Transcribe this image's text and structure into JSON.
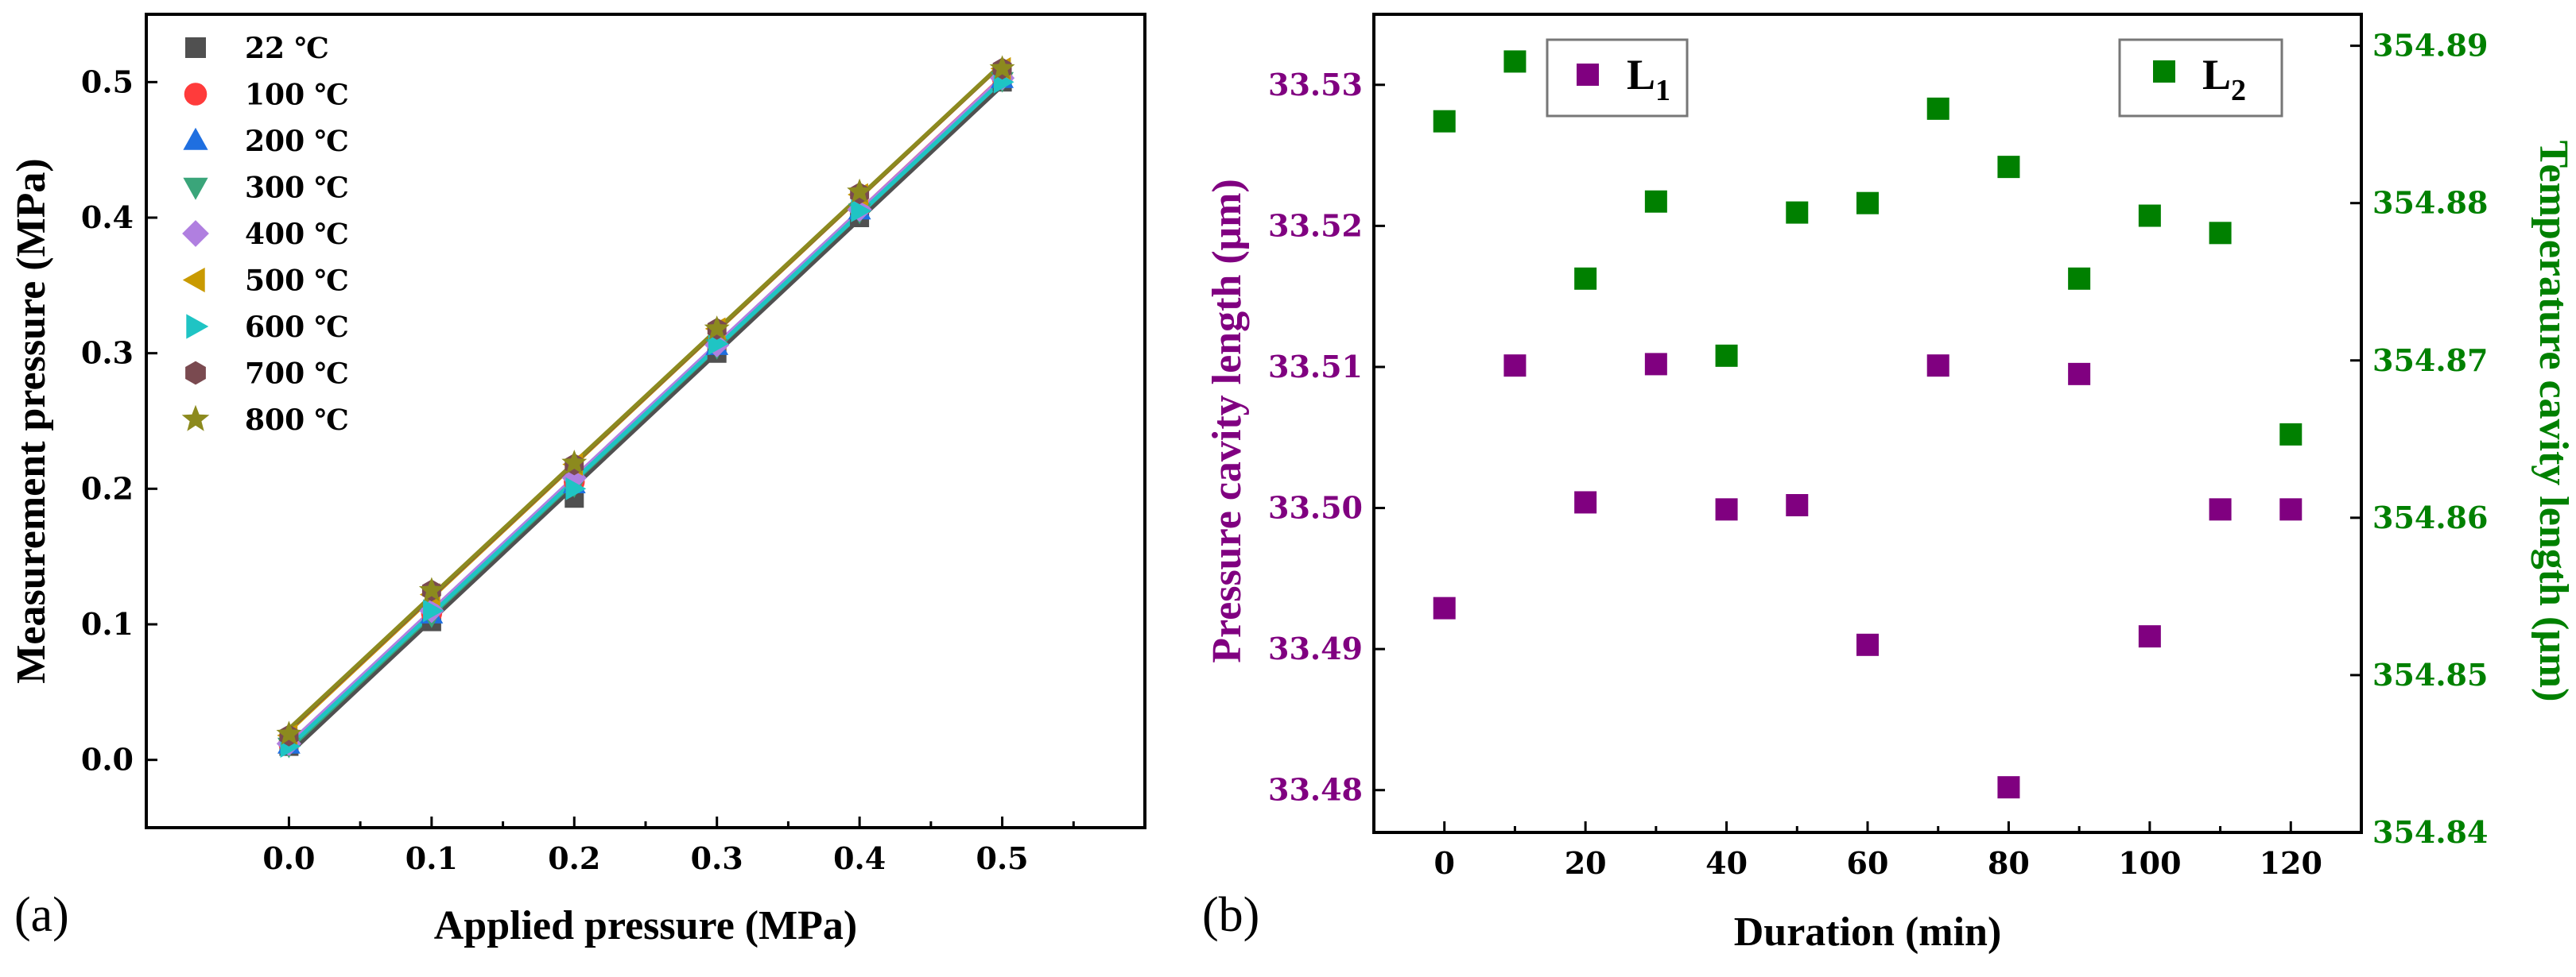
{
  "chart_data": [
    {
      "type": "line",
      "panel_label": "(a)",
      "xlabel": "Applied pressure (MPa)",
      "ylabel": "Measurement pressure (MPa)",
      "xlim": [
        -0.1,
        0.6
      ],
      "ylim": [
        -0.05,
        0.55
      ],
      "xticks": [
        "0.0",
        "0.1",
        "0.2",
        "0.3",
        "0.4",
        "0.5"
      ],
      "yticks": [
        "0.0",
        "0.1",
        "0.2",
        "0.3",
        "0.4",
        "0.5"
      ],
      "legend_position": "top-left",
      "x": [
        0.0,
        0.1,
        0.2,
        0.3,
        0.4,
        0.5
      ],
      "series": [
        {
          "name": "22 ℃",
          "marker": "square",
          "color": "#505050",
          "values": [
            0.01,
            0.102,
            0.193,
            0.3,
            0.4,
            0.5
          ]
        },
        {
          "name": "100 ℃",
          "marker": "circle",
          "color": "#ff3b3b",
          "values": [
            0.012,
            0.108,
            0.205,
            0.307,
            0.407,
            0.503
          ]
        },
        {
          "name": "200 ℃",
          "marker": "triangle-up",
          "color": "#1f6fe0",
          "values": [
            0.011,
            0.107,
            0.203,
            0.305,
            0.405,
            0.502
          ]
        },
        {
          "name": "300 ℃",
          "marker": "triangle-down",
          "color": "#3aa57a",
          "values": [
            0.01,
            0.106,
            0.202,
            0.304,
            0.404,
            0.501
          ]
        },
        {
          "name": "400 ℃",
          "marker": "diamond",
          "color": "#b07fe0",
          "values": [
            0.012,
            0.11,
            0.208,
            0.306,
            0.406,
            0.503
          ]
        },
        {
          "name": "500 ℃",
          "marker": "triangle-left",
          "color": "#c99a00",
          "values": [
            0.018,
            0.122,
            0.218,
            0.318,
            0.417,
            0.51
          ]
        },
        {
          "name": "600 ℃",
          "marker": "triangle-right",
          "color": "#1fc4c4",
          "values": [
            0.01,
            0.11,
            0.2,
            0.307,
            0.405,
            0.5
          ]
        },
        {
          "name": "700 ℃",
          "marker": "hexagon",
          "color": "#7a4a50",
          "values": [
            0.018,
            0.125,
            0.218,
            0.318,
            0.418,
            0.51
          ]
        },
        {
          "name": "800 ℃",
          "marker": "star",
          "color": "#8c8a1e",
          "values": [
            0.019,
            0.125,
            0.219,
            0.318,
            0.419,
            0.51
          ]
        }
      ]
    },
    {
      "type": "scatter",
      "panel_label": "(b)",
      "xlabel": "Duration (min)",
      "ylabel_left": "Pressure cavity length (μm)",
      "ylabel_right": "Temperature cavity length (μm)",
      "xlim": [
        -10,
        130
      ],
      "ylim_left": [
        33.477,
        33.535
      ],
      "ylim_right": [
        354.84,
        354.892
      ],
      "xticks": [
        "0",
        "20",
        "40",
        "60",
        "80",
        "100",
        "120"
      ],
      "yticks_left": [
        "33.48",
        "33.49",
        "33.50",
        "33.51",
        "33.52",
        "33.53"
      ],
      "yticks_right": [
        "354.84",
        "354.85",
        "354.86",
        "354.87",
        "354.88",
        "354.89"
      ],
      "series": [
        {
          "name": "L",
          "subscript": "1",
          "axis": "left",
          "color": "#800080",
          "x": [
            0,
            10,
            20,
            30,
            40,
            50,
            60,
            70,
            80,
            90,
            100,
            110,
            120
          ],
          "values": [
            33.4929,
            33.5101,
            33.5004,
            33.5102,
            33.4999,
            33.5002,
            33.4903,
            33.5101,
            33.4802,
            33.5095,
            33.4909,
            33.4999,
            33.4999
          ]
        },
        {
          "name": "L",
          "subscript": "2",
          "axis": "right",
          "color": "#008000",
          "x": [
            0,
            10,
            20,
            30,
            40,
            50,
            60,
            70,
            80,
            90,
            100,
            110,
            120
          ],
          "values": [
            354.8852,
            354.889,
            354.8752,
            354.8801,
            354.8703,
            354.8794,
            354.88,
            354.886,
            354.8823,
            354.8752,
            354.8792,
            354.8781,
            354.8653
          ]
        }
      ]
    }
  ]
}
